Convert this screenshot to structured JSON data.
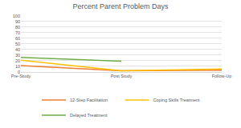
{
  "chart_data": {
    "type": "line",
    "title": "Percent Parent Problem Days",
    "categories": [
      "Pre-Study",
      "Post Study",
      "Follow-Up"
    ],
    "series": [
      {
        "name": "12-Step Facilitation",
        "color": "#ed7d31",
        "values": [
          11,
          2,
          3
        ]
      },
      {
        "name": "Coping Skills Treatment",
        "color": "#ffc000",
        "values": [
          21,
          2,
          5
        ]
      },
      {
        "name": "Delayed Treatment",
        "color": "#70ad47",
        "values": [
          26,
          19,
          null
        ]
      }
    ],
    "ylim": [
      0,
      100
    ],
    "yticks": [
      0,
      10,
      20,
      30,
      40,
      50,
      60,
      70,
      80,
      90,
      100
    ],
    "grid": true,
    "legend": "bottom"
  }
}
